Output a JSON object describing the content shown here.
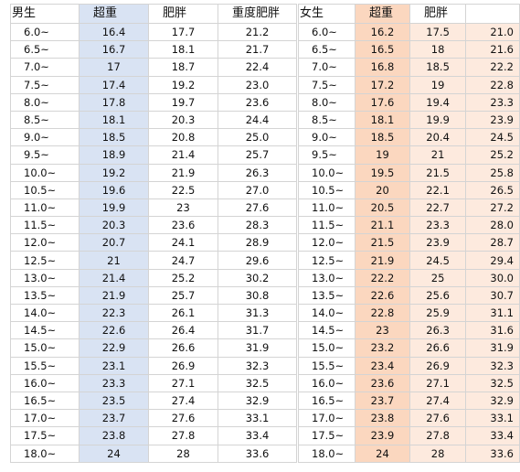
{
  "boys": {
    "headers": [
      "男生",
      "超重",
      "肥胖",
      "重度肥胖"
    ],
    "rows": [
      [
        "6.0~",
        "16.4",
        "17.7",
        "21.2"
      ],
      [
        "6.5~",
        "16.7",
        "18.1",
        "21.7"
      ],
      [
        "7.0~",
        "17",
        "18.7",
        "22.4"
      ],
      [
        "7.5~",
        "17.4",
        "19.2",
        "23.0"
      ],
      [
        "8.0~",
        "17.8",
        "19.7",
        "23.6"
      ],
      [
        "8.5~",
        "18.1",
        "20.3",
        "24.4"
      ],
      [
        "9.0~",
        "18.5",
        "20.8",
        "25.0"
      ],
      [
        "9.5~",
        "18.9",
        "21.4",
        "25.7"
      ],
      [
        "10.0~",
        "19.2",
        "21.9",
        "26.3"
      ],
      [
        "10.5~",
        "19.6",
        "22.5",
        "27.0"
      ],
      [
        "11.0~",
        "19.9",
        "23",
        "27.6"
      ],
      [
        "11.5~",
        "20.3",
        "23.6",
        "28.3"
      ],
      [
        "12.0~",
        "20.7",
        "24.1",
        "28.9"
      ],
      [
        "12.5~",
        "21",
        "24.7",
        "29.6"
      ],
      [
        "13.0~",
        "21.4",
        "25.2",
        "30.2"
      ],
      [
        "13.5~",
        "21.9",
        "25.7",
        "30.8"
      ],
      [
        "14.0~",
        "22.3",
        "26.1",
        "31.3"
      ],
      [
        "14.5~",
        "22.6",
        "26.4",
        "31.7"
      ],
      [
        "15.0~",
        "22.9",
        "26.6",
        "31.9"
      ],
      [
        "15.5~",
        "23.1",
        "26.9",
        "32.3"
      ],
      [
        "16.0~",
        "23.3",
        "27.1",
        "32.5"
      ],
      [
        "16.5~",
        "23.5",
        "27.4",
        "32.9"
      ],
      [
        "17.0~",
        "23.7",
        "27.6",
        "33.1"
      ],
      [
        "17.5~",
        "23.8",
        "27.8",
        "33.4"
      ],
      [
        "18.0~",
        "24",
        "28",
        "33.6"
      ]
    ]
  },
  "girls": {
    "headers": [
      "女生",
      "超重",
      "肥胖",
      ""
    ],
    "rows": [
      [
        "6.0~",
        "16.2",
        "17.5",
        "21.0"
      ],
      [
        "6.5~",
        "16.5",
        "18",
        "21.6"
      ],
      [
        "7.0~",
        "16.8",
        "18.5",
        "22.2"
      ],
      [
        "7.5~",
        "17.2",
        "19",
        "22.8"
      ],
      [
        "8.0~",
        "17.6",
        "19.4",
        "23.3"
      ],
      [
        "8.5~",
        "18.1",
        "19.9",
        "23.9"
      ],
      [
        "9.0~",
        "18.5",
        "20.4",
        "24.5"
      ],
      [
        "9.5~",
        "19",
        "21",
        "25.2"
      ],
      [
        "10.0~",
        "19.5",
        "21.5",
        "25.8"
      ],
      [
        "10.5~",
        "20",
        "22.1",
        "26.5"
      ],
      [
        "11.0~",
        "20.5",
        "22.7",
        "27.2"
      ],
      [
        "11.5~",
        "21.1",
        "23.3",
        "28.0"
      ],
      [
        "12.0~",
        "21.5",
        "23.9",
        "28.7"
      ],
      [
        "12.5~",
        "21.9",
        "24.5",
        "29.4"
      ],
      [
        "13.0~",
        "22.2",
        "25",
        "30.0"
      ],
      [
        "13.5~",
        "22.6",
        "25.6",
        "30.7"
      ],
      [
        "14.0~",
        "22.8",
        "25.9",
        "31.1"
      ],
      [
        "14.5~",
        "23",
        "26.3",
        "31.6"
      ],
      [
        "15.0~",
        "23.2",
        "26.6",
        "31.9"
      ],
      [
        "15.5~",
        "23.4",
        "26.9",
        "32.3"
      ],
      [
        "16.0~",
        "23.6",
        "27.1",
        "32.5"
      ],
      [
        "16.5~",
        "23.7",
        "27.4",
        "32.9"
      ],
      [
        "17.0~",
        "23.8",
        "27.6",
        "33.1"
      ],
      [
        "17.5~",
        "23.9",
        "27.8",
        "33.4"
      ],
      [
        "18.0~",
        "24",
        "28",
        "33.6"
      ]
    ]
  }
}
